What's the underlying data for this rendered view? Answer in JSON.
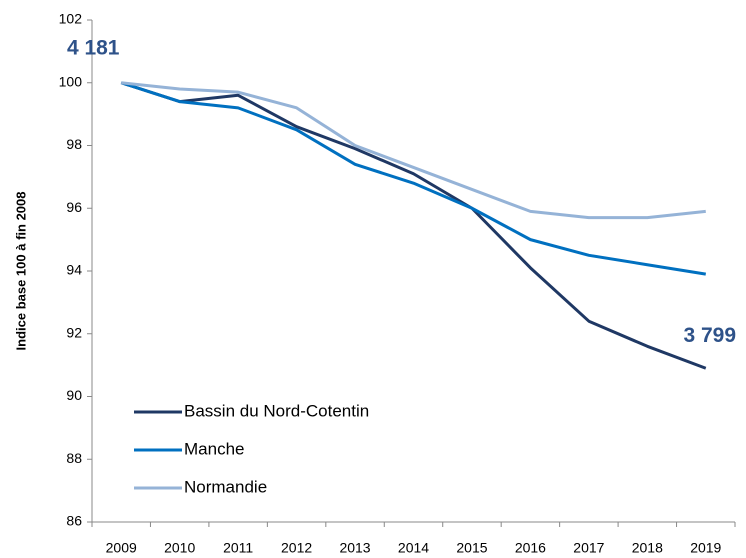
{
  "chart_data": {
    "type": "line",
    "y_label": "Indice base 100 à fin 2008",
    "categories": [
      "2009",
      "2010",
      "2011",
      "2012",
      "2013",
      "2014",
      "2015",
      "2016",
      "2017",
      "2018",
      "2019"
    ],
    "series": [
      {
        "name": "Bassin du Nord-Cotentin",
        "color": "#1f3864",
        "values": [
          100,
          99.4,
          99.6,
          98.6,
          97.9,
          97.1,
          96.0,
          94.1,
          92.4,
          91.6,
          90.9
        ]
      },
      {
        "name": "Manche",
        "color": "#0070c0",
        "values": [
          100,
          99.4,
          99.2,
          98.5,
          97.4,
          96.8,
          96.0,
          95.0,
          94.5,
          94.2,
          93.9
        ]
      },
      {
        "name": "Normandie",
        "color": "#95b3d7",
        "values": [
          100,
          99.8,
          99.7,
          99.2,
          98.0,
          97.3,
          96.6,
          95.9,
          95.7,
          95.7,
          95.9
        ]
      }
    ],
    "annotations": [
      "4 181",
      "3 799"
    ],
    "ylim": [
      86,
      102
    ],
    "yticks": [
      86,
      88,
      90,
      92,
      94,
      96,
      98,
      100,
      102
    ],
    "grid": false,
    "legend": "lower left"
  }
}
